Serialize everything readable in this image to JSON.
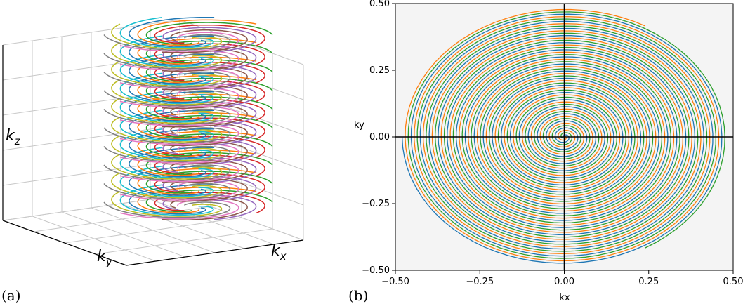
{
  "panel_labels": {
    "a": "(a)",
    "b": "(b)"
  },
  "chart_data": [
    {
      "type": "line",
      "subtype": "3d-stacked-spiral",
      "xlabel": "k",
      "xlabel_sub": "x",
      "ylabel": "k",
      "ylabel_sub": "y",
      "zlabel": "k",
      "zlabel_sub": "z",
      "grid": true,
      "tick_labels_shown": false,
      "stack_levels": 10,
      "interleaves_per_level": 10
    },
    {
      "type": "line",
      "subtype": "2d-interleaved-spiral",
      "xlabel": "kx",
      "ylabel": "ky",
      "xlim": [
        -0.5,
        0.5
      ],
      "ylim": [
        -0.5,
        0.5
      ],
      "xticks": [
        "−0.50",
        "−0.25",
        "0.00",
        "0.25",
        "0.50"
      ],
      "yticks": [
        "0.50",
        "0.25",
        "0.00",
        "−0.25",
        "−0.50"
      ],
      "tick_values": [
        -0.5,
        -0.25,
        0.0,
        0.25,
        0.5
      ],
      "interleaves": 3,
      "max_radius": 0.48,
      "turns": 18,
      "background": "#f4f4f4",
      "zero_lines": true,
      "series_colors": [
        "#1f77b4",
        "#ff7f0e",
        "#2ca02c"
      ]
    }
  ],
  "palette": [
    "#1f77b4",
    "#ff7f0e",
    "#2ca02c",
    "#d62728",
    "#9467bd",
    "#8c564b",
    "#e377c2",
    "#7f7f7f",
    "#bcbd22",
    "#17becf"
  ]
}
